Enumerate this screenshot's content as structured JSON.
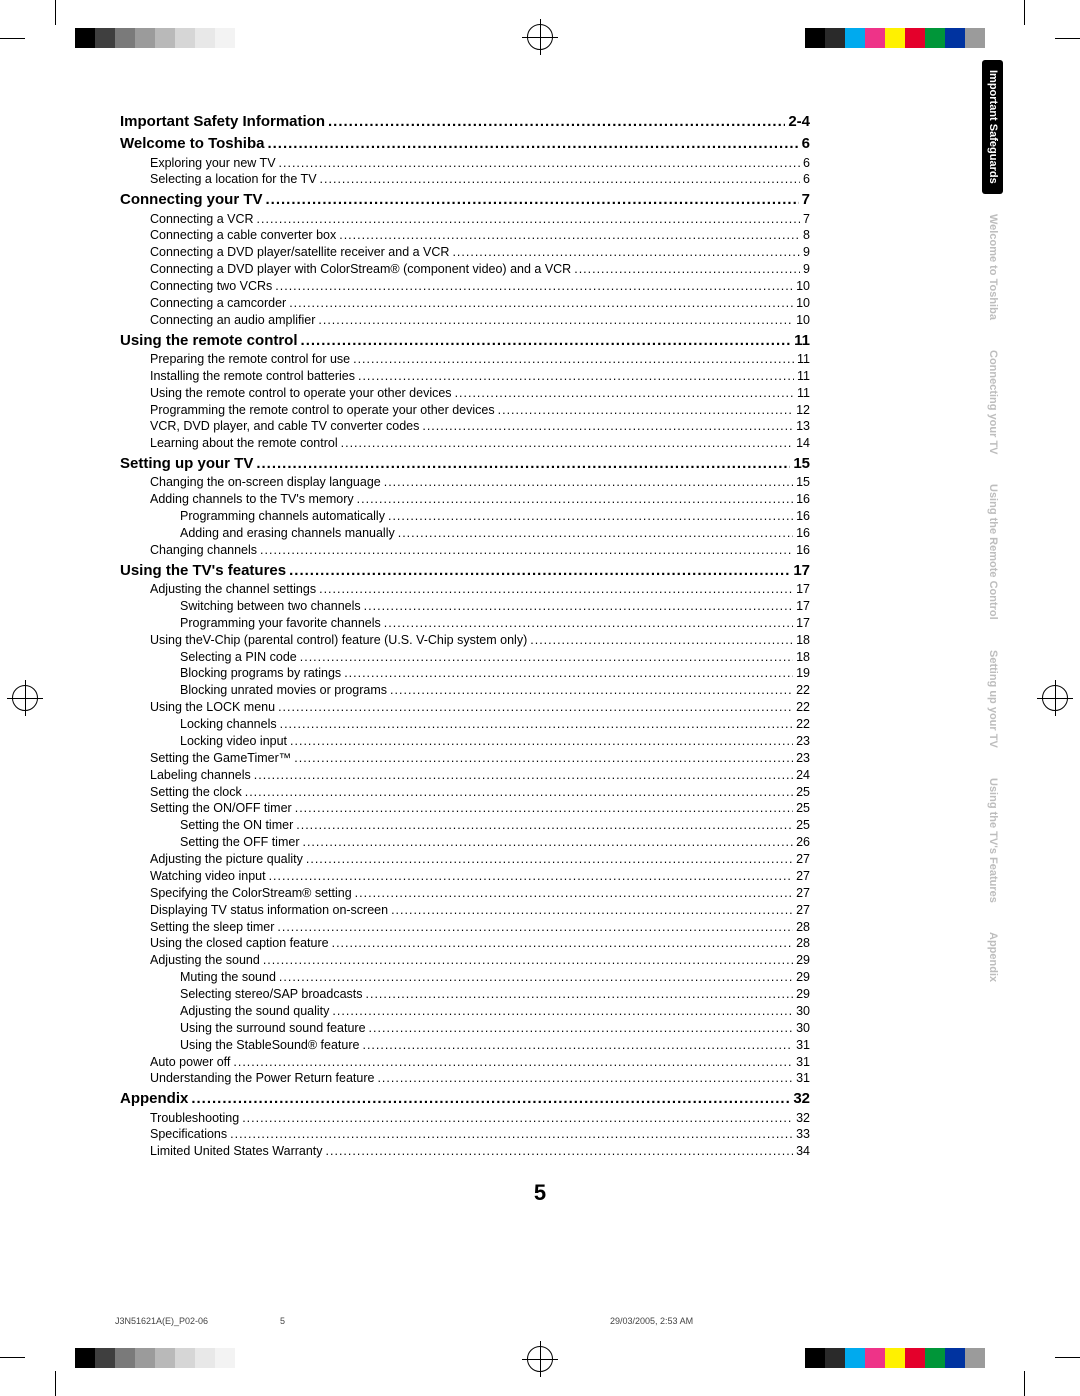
{
  "page_number": "5",
  "footer": {
    "filename": "J3N51621A(E)_P02-06",
    "page": "5",
    "timestamp": "29/03/2005, 2:53 AM"
  },
  "color_swatches_tl": [
    "#000000",
    "#3f3f3f",
    "#7a7a7a",
    "#9b9b9b",
    "#b9b9b9",
    "#d6d6d6",
    "#e8e8e8",
    "#f3f3f3",
    "#ffffff",
    "#ffffff"
  ],
  "color_swatches_tr": [
    "#000000",
    "#2a2a2a",
    "#00aaee",
    "#ee3388",
    "#fff100",
    "#e4002b",
    "#009639",
    "#0033a0",
    "#9b9b9b",
    "#ffffff"
  ],
  "tabs": [
    {
      "label": "Important\nSafeguards",
      "active": true
    },
    {
      "label": "Welcome to\nToshiba",
      "active": false
    },
    {
      "label": "Connecting\nyour TV",
      "active": false
    },
    {
      "label": "Using the\nRemote Control",
      "active": false
    },
    {
      "label": "Setting up\nyour TV",
      "active": false
    },
    {
      "label": "Using the TV's\nFeatures",
      "active": false
    },
    {
      "label": "Appendix",
      "active": false
    }
  ],
  "toc": [
    {
      "level": 1,
      "title": "Important Safety Information",
      "page": "2-4"
    },
    {
      "level": 1,
      "title": "Welcome to Toshiba",
      "page": "6"
    },
    {
      "level": 2,
      "title": "Exploring your new TV",
      "page": "6"
    },
    {
      "level": 2,
      "title": "Selecting a location for the TV",
      "page": "6"
    },
    {
      "level": 1,
      "title": "Connecting your TV",
      "page": "7"
    },
    {
      "level": 2,
      "title": "Connecting a VCR",
      "page": "7"
    },
    {
      "level": 2,
      "title": "Connecting a cable converter box",
      "page": "8"
    },
    {
      "level": 2,
      "title": "Connecting a DVD player/satellite receiver and a VCR",
      "page": "9"
    },
    {
      "level": 2,
      "title": "Connecting a DVD player with ColorStream® (component video) and a VCR",
      "page": "9"
    },
    {
      "level": 2,
      "title": "Connecting two VCRs",
      "page": "10"
    },
    {
      "level": 2,
      "title": "Connecting a camcorder",
      "page": "10"
    },
    {
      "level": 2,
      "title": "Connecting an audio amplifier",
      "page": "10"
    },
    {
      "level": 1,
      "title": "Using the remote control",
      "page": "11"
    },
    {
      "level": 2,
      "title": "Preparing the remote control for use",
      "page": "11"
    },
    {
      "level": 2,
      "title": "Installing the remote control batteries",
      "page": "11"
    },
    {
      "level": 2,
      "title": "Using the remote control to operate your other devices",
      "page": "11"
    },
    {
      "level": 2,
      "title": "Programming the remote control to operate your other devices",
      "page": "12"
    },
    {
      "level": 2,
      "title": "VCR, DVD player, and cable TV converter codes",
      "page": "13"
    },
    {
      "level": 2,
      "title": "Learning about the remote control",
      "page": "14"
    },
    {
      "level": 1,
      "title": "Setting up your TV",
      "page": "15"
    },
    {
      "level": 2,
      "title": "Changing the on-screen display language",
      "page": "15"
    },
    {
      "level": 2,
      "title": "Adding channels to the TV's memory",
      "page": "16"
    },
    {
      "level": 3,
      "title": "Programming channels automatically",
      "page": "16"
    },
    {
      "level": 3,
      "title": "Adding and erasing channels manually",
      "page": "16"
    },
    {
      "level": 2,
      "title": "Changing channels",
      "page": "16"
    },
    {
      "level": 1,
      "title": "Using the TV's features",
      "page": "17"
    },
    {
      "level": 2,
      "title": "Adjusting the channel settings",
      "page": "17"
    },
    {
      "level": 3,
      "title": "Switching between two channels",
      "page": "17"
    },
    {
      "level": 3,
      "title": "Programming your favorite channels",
      "page": "17"
    },
    {
      "level": 2,
      "title": "Using theV-Chip (parental control) feature (U.S. V-Chip system only)",
      "page": "18"
    },
    {
      "level": 3,
      "title": "Selecting a PIN code",
      "page": "18"
    },
    {
      "level": 3,
      "title": "Blocking programs by ratings",
      "page": "19"
    },
    {
      "level": 3,
      "title": "Blocking unrated movies or programs",
      "page": "22"
    },
    {
      "level": 2,
      "title": "Using the LOCK menu",
      "page": "22"
    },
    {
      "level": 3,
      "title": "Locking channels",
      "page": "22"
    },
    {
      "level": 3,
      "title": "Locking video input",
      "page": "23"
    },
    {
      "level": 2,
      "title": "Setting the GameTimer™",
      "page": "23"
    },
    {
      "level": 2,
      "title": "Labeling channels",
      "page": "24"
    },
    {
      "level": 2,
      "title": "Setting the clock",
      "page": "25"
    },
    {
      "level": 2,
      "title": "Setting the ON/OFF timer",
      "page": "25"
    },
    {
      "level": 3,
      "title": "Setting the ON timer",
      "page": "25"
    },
    {
      "level": 3,
      "title": "Setting the OFF timer",
      "page": "26"
    },
    {
      "level": 2,
      "title": "Adjusting the picture quality",
      "page": "27"
    },
    {
      "level": 2,
      "title": "Watching video input",
      "page": "27"
    },
    {
      "level": 2,
      "title": "Specifying the ColorStream® setting",
      "page": "27"
    },
    {
      "level": 2,
      "title": "Displaying TV status information on-screen",
      "page": "27"
    },
    {
      "level": 2,
      "title": "Setting the sleep timer",
      "page": "28"
    },
    {
      "level": 2,
      "title": "Using the closed caption feature",
      "page": "28"
    },
    {
      "level": 2,
      "title": "Adjusting the sound",
      "page": "29"
    },
    {
      "level": 3,
      "title": "Muting the sound",
      "page": "29"
    },
    {
      "level": 3,
      "title": "Selecting stereo/SAP broadcasts",
      "page": "29"
    },
    {
      "level": 3,
      "title": "Adjusting the sound quality",
      "page": "30"
    },
    {
      "level": 3,
      "title": "Using the surround sound feature",
      "page": "30"
    },
    {
      "level": 3,
      "title": "Using the StableSound® feature",
      "page": "31"
    },
    {
      "level": 2,
      "title": "Auto power off",
      "page": "31"
    },
    {
      "level": 2,
      "title": "Understanding the Power Return feature",
      "page": "31"
    },
    {
      "level": 1,
      "title": "Appendix",
      "page": "32"
    },
    {
      "level": 2,
      "title": "Troubleshooting",
      "page": "32"
    },
    {
      "level": 2,
      "title": "Specifications",
      "page": "33"
    },
    {
      "level": 2,
      "title": "Limited United States Warranty",
      "page": "34"
    }
  ]
}
